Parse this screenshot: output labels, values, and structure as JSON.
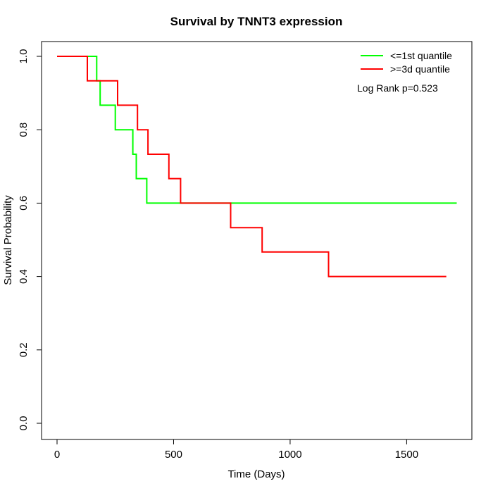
{
  "chart_data": {
    "type": "line",
    "subtype": "kaplan-meier-step",
    "title": "Survival by TNNT3 expression",
    "xlabel": "Time (Days)",
    "ylabel": "Survival Probability",
    "xlim": [
      0,
      1716
    ],
    "ylim": [
      0,
      1
    ],
    "grid": false,
    "legend_position": "top-right-inside",
    "annotation": "Log Rank p=0.523",
    "x_ticks": [
      {
        "v": 0,
        "label": "0"
      },
      {
        "v": 500,
        "label": "500"
      },
      {
        "v": 1000,
        "label": "1000"
      },
      {
        "v": 1500,
        "label": "1500"
      }
    ],
    "y_ticks": [
      {
        "v": 0.0,
        "label": "0.0"
      },
      {
        "v": 0.2,
        "label": "0.2"
      },
      {
        "v": 0.4,
        "label": "0.4"
      },
      {
        "v": 0.6,
        "label": "0.6"
      },
      {
        "v": 0.8,
        "label": "0.8"
      },
      {
        "v": 1.0,
        "label": "1.0"
      }
    ],
    "series": [
      {
        "name": "<=1st quantile",
        "color": "#00FF00",
        "end_time": 1715,
        "steps": [
          [
            0,
            1.0
          ],
          [
            170,
            0.9333
          ],
          [
            185,
            0.8667
          ],
          [
            250,
            0.8
          ],
          [
            325,
            0.7333
          ],
          [
            340,
            0.6667
          ],
          [
            385,
            0.6
          ]
        ]
      },
      {
        "name": ">=3d quantile",
        "color": "#FF0000",
        "end_time": 1670,
        "steps": [
          [
            0,
            1.0
          ],
          [
            130,
            0.9333
          ],
          [
            260,
            0.8667
          ],
          [
            345,
            0.8
          ],
          [
            390,
            0.7333
          ],
          [
            480,
            0.6667
          ],
          [
            530,
            0.6
          ],
          [
            745,
            0.5333
          ],
          [
            880,
            0.4667
          ],
          [
            1165,
            0.4
          ]
        ]
      }
    ]
  }
}
